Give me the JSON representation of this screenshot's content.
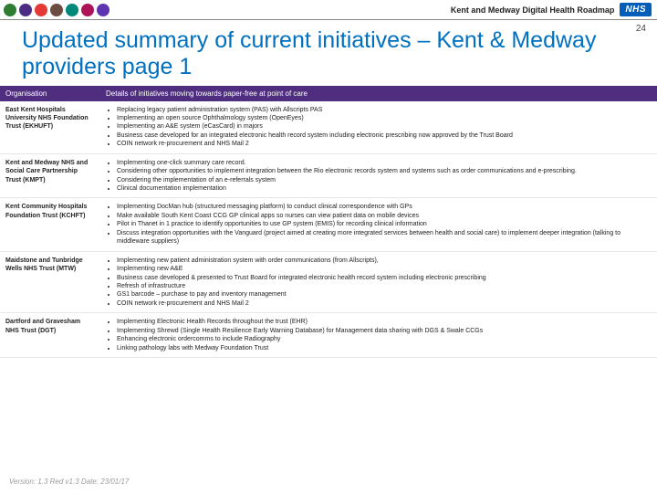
{
  "header": {
    "icon_colors": [
      "#2e7d32",
      "#4b2e83",
      "#e53935",
      "#6d4c41",
      "#00897b",
      "#ad1457",
      "#5e35b1"
    ],
    "roadmap_label": "Kent and Medway Digital Health Roadmap",
    "nhs_label": "NHS",
    "page_number": "24"
  },
  "title": "Updated summary of current initiatives – Kent & Medway providers page 1",
  "table": {
    "columns": [
      "Organisation",
      "Details of initiatives moving towards paper-free at point of care"
    ],
    "rows": [
      {
        "org": "East Kent Hospitals University NHS Foundation Trust (EKHUFT)",
        "items": [
          "Replacing legacy patient administration system (PAS) with Allscripts PAS",
          "Implementing an open source Ophthalmology system (OpenEyes)",
          "Implementing an A&E system (eCasCard) in majors",
          "Business case developed for an integrated electronic health record system including electronic prescribing now approved by the Trust Board",
          "COIN network re-procurement and NHS Mail 2"
        ]
      },
      {
        "org": "Kent and Medway NHS and Social Care Partnership Trust (KMPT)",
        "items": [
          "Implementing one-click summary care record.",
          "Considering other opportunities to implement integration between the Rio electronic records system and systems such as order communications and e-prescribing.",
          "Considering the implementation of an e-referrals system",
          "Clinical documentation implementation"
        ]
      },
      {
        "org": "Kent Community Hospitals Foundation Trust (KCHFT)",
        "items": [
          "Implementing DocMan hub (structured messaging platform) to conduct clinical correspondence with GPs",
          "Make available South Kent Coast CCG GP clinical apps so nurses can view patient data on mobile devices",
          "Pilot in Thanet in 1 practice to identify opportunities to use GP system (EMIS) for recording clinical information",
          "Discuss integration opportunities with the Vanguard (project aimed at creating more integrated services between health and social care) to implement deeper integration (talking to middleware suppliers)"
        ]
      },
      {
        "org": "Maidstone and Tunbridge Wells NHS Trust (MTW)",
        "items": [
          "Implementing new patient administration system with order communications (from Allscripts),",
          "Implementing new A&E",
          "Business case developed & presented to Trust Board for integrated electronic health record system including electronic prescribing",
          "Refresh of infrastructure",
          "GS1 barcode – purchase to pay and inventory management",
          "COIN network re-procurement and NHS Mail 2"
        ]
      },
      {
        "org": "Dartford and Gravesham NHS Trust (DGT)",
        "items": [
          "Implementing Electronic Health Records throughout the trust (EHR)",
          "Implementing Shrewd (Single Health Resilience Early Warning Database) for Management data sharing with DGS & Swale CCGs",
          "Enhancing electronic ordercomms to include Radiography",
          "Linking pathology labs with Medway Foundation Trust"
        ]
      }
    ]
  },
  "footer": "Version: 1.3 Red v1.3 Date: 23/01/17"
}
